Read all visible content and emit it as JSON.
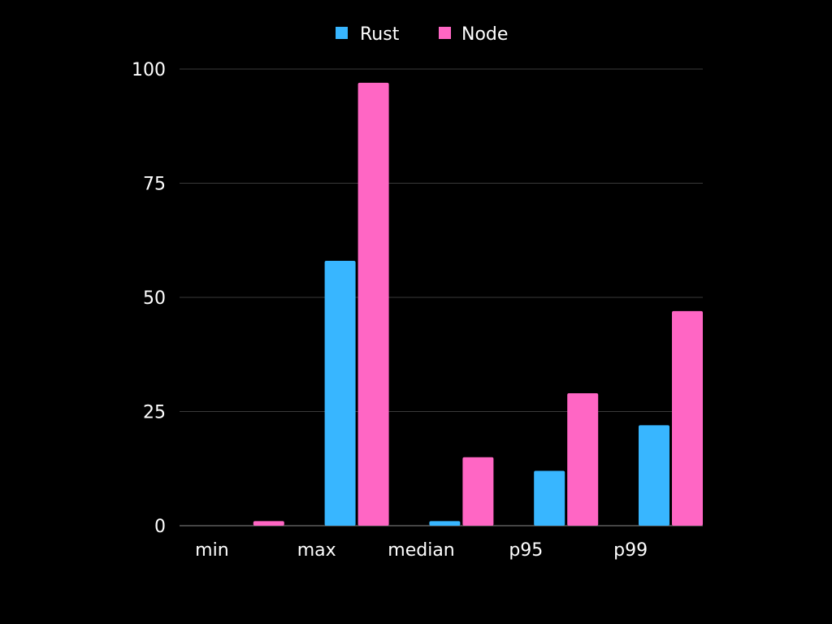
{
  "chart_data": {
    "type": "bar",
    "categories": [
      "min",
      "max",
      "median",
      "p95",
      "p99"
    ],
    "series": [
      {
        "name": "Rust",
        "color": "#38b6ff",
        "values": [
          0,
          58,
          1,
          12,
          22
        ]
      },
      {
        "name": "Node",
        "color": "#ff66c4",
        "values": [
          1,
          97,
          15,
          29,
          47
        ]
      }
    ],
    "title": "",
    "xlabel": "",
    "ylabel": "",
    "ylim": [
      0,
      100
    ],
    "yticks": [
      "0",
      "25",
      "50",
      "75",
      "100"
    ],
    "grid": true,
    "legend": "top-center",
    "background": "#000000",
    "gridline_color": "#3a3a3a",
    "axis_color": "#8a8a8a"
  }
}
